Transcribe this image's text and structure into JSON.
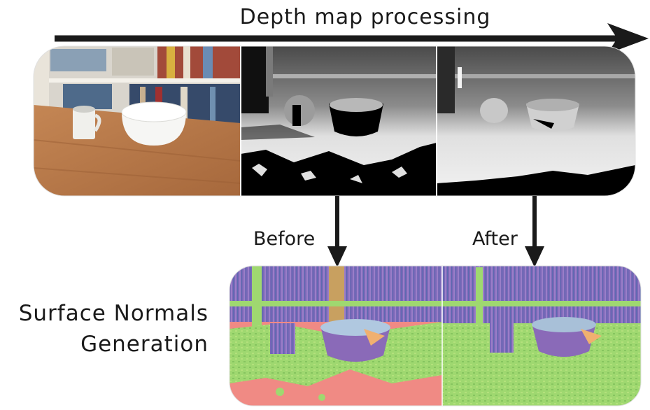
{
  "title": "Depth map processing",
  "arrow_labels": {
    "before": "Before",
    "after": "After"
  },
  "side_label": {
    "line1": "Surface Normals",
    "line2": "Generation"
  },
  "panels": {
    "top": [
      "rgb-photo",
      "raw-depth-map",
      "processed-depth-map"
    ],
    "bottom": [
      "normals-before",
      "normals-after"
    ]
  },
  "colors": {
    "wood": "#b8794a",
    "shelf": "#d8d4cc",
    "depth_light": "#e6e6e6",
    "depth_mid": "#a8a8a8",
    "depth_dark": "#000000",
    "normal_green": "#9fd870",
    "normal_purple": "#7a68b8",
    "normal_pink": "#f08080",
    "arrow": "#1a1a1a"
  }
}
